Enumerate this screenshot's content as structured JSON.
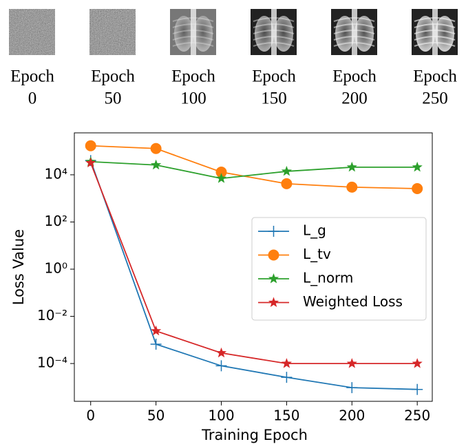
{
  "panels": [
    {
      "word": "Epoch",
      "epoch": 0
    },
    {
      "word": "Epoch",
      "epoch": 50
    },
    {
      "word": "Epoch",
      "epoch": 100
    },
    {
      "word": "Epoch",
      "epoch": 150
    },
    {
      "word": "Epoch",
      "epoch": 200
    },
    {
      "word": "Epoch",
      "epoch": 250
    }
  ],
  "chart_data": {
    "type": "line",
    "x_label": "Training Epoch",
    "y_label": "Loss Value",
    "x": [
      0,
      50,
      100,
      150,
      200,
      250
    ],
    "xlim": [
      -12.5,
      261.5
    ],
    "xticks": [
      0,
      50,
      100,
      150,
      200,
      250
    ],
    "yscale": "log",
    "ylim": [
      2.5e-06,
      600000
    ],
    "yticks": [
      {
        "value": 0.0001,
        "label": "10⁻⁴"
      },
      {
        "value": 0.01,
        "label": "10⁻²"
      },
      {
        "value": 1,
        "label": "10⁰"
      },
      {
        "value": 100,
        "label": "10²"
      },
      {
        "value": 10000,
        "label": "10⁴"
      }
    ],
    "legend": "center right",
    "series": [
      {
        "name": "L_g",
        "color": "#1f77b4",
        "marker": "plus",
        "values": [
          40000,
          0.00066,
          8e-05,
          2.6e-05,
          9.5e-06,
          8e-06
        ]
      },
      {
        "name": "L_tv",
        "color": "#ff7f0e",
        "marker": "circle",
        "values": [
          170000,
          130000,
          13000,
          4200,
          3000,
          2600
        ]
      },
      {
        "name": "L_norm",
        "color": "#2ca02c",
        "marker": "star",
        "values": [
          36000,
          26000,
          7000,
          14000,
          21000,
          21000
        ]
      },
      {
        "name": "Weighted Loss",
        "color": "#d62728",
        "marker": "star",
        "values": [
          32000,
          0.0024,
          0.00028,
          0.0001,
          0.0001,
          0.0001
        ]
      }
    ]
  }
}
